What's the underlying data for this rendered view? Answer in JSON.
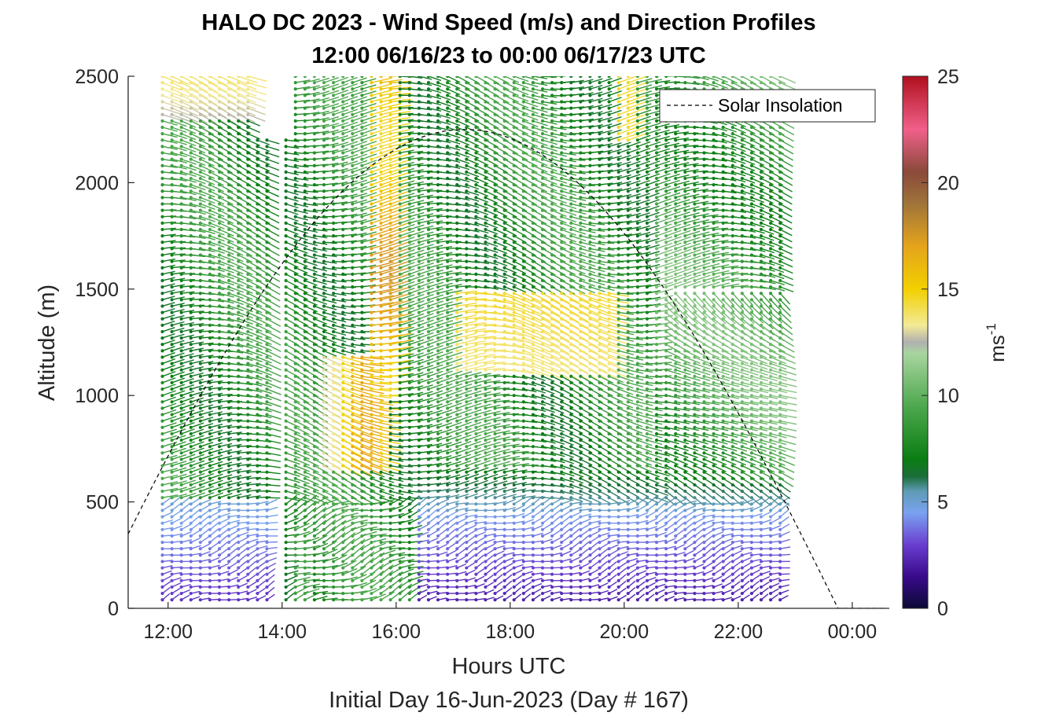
{
  "chart_data": {
    "type": "scatter",
    "title": "HALO DC 2023 - Wind Speed (m/s) and Direction Profiles",
    "subtitle": "12:00 06/16/23 to 00:00 06/17/23  UTC",
    "xlabel": "Hours UTC",
    "xlabel2": "Initial Day 16-Jun-2023 (Day # 167)",
    "ylabel": "Altitude (m)",
    "xlim_hours": [
      11.3,
      24.65
    ],
    "ylim": [
      0,
      2500
    ],
    "x_ticks": [
      {
        "value": 12,
        "label": "12:00"
      },
      {
        "value": 14,
        "label": "14:00"
      },
      {
        "value": 16,
        "label": "16:00"
      },
      {
        "value": 18,
        "label": "18:00"
      },
      {
        "value": 20,
        "label": "20:00"
      },
      {
        "value": 22,
        "label": "22:00"
      },
      {
        "value": 24,
        "label": "00:00"
      }
    ],
    "y_ticks": [
      0,
      500,
      1000,
      1500,
      2000,
      2500
    ],
    "colorbar": {
      "label": "ms-1",
      "label_main": "ms",
      "label_sup": "-1",
      "range": [
        0,
        25
      ],
      "ticks": [
        0,
        5,
        10,
        15,
        20,
        25
      ],
      "stops": [
        {
          "v": 0,
          "c": "#0b0a36"
        },
        {
          "v": 1.5,
          "c": "#3a0a8c"
        },
        {
          "v": 3,
          "c": "#6a3fd0"
        },
        {
          "v": 4.5,
          "c": "#7aa2f0"
        },
        {
          "v": 5.5,
          "c": "#5e9bb5"
        },
        {
          "v": 6.2,
          "c": "#1a6e3a"
        },
        {
          "v": 7,
          "c": "#0a7d12"
        },
        {
          "v": 9.5,
          "c": "#4ea84e"
        },
        {
          "v": 12,
          "c": "#a9d5a0"
        },
        {
          "v": 12.5,
          "c": "#b0b0b0"
        },
        {
          "v": 13.3,
          "c": "#f3ea96"
        },
        {
          "v": 15,
          "c": "#f2d000"
        },
        {
          "v": 17,
          "c": "#e5a41c"
        },
        {
          "v": 19,
          "c": "#a0743a"
        },
        {
          "v": 20.5,
          "c": "#8a4a3a"
        },
        {
          "v": 22.5,
          "c": "#f0608a"
        },
        {
          "v": 25,
          "c": "#b0101e"
        }
      ]
    },
    "legend": {
      "entries": [
        "Solar Insolation"
      ],
      "placement": "top-right"
    },
    "solar_insolation": {
      "style": "dashed",
      "color": "#000000",
      "peak_hour": 17.2,
      "peak_altitude": 2250,
      "start_hour": 11.3,
      "end_hour": 24.4
    },
    "profiles": {
      "time_start": 11.9,
      "time_end": 22.85,
      "time_step": 0.1667,
      "gap_start": 13.85,
      "gap_end": 14.05,
      "levels_start": 40,
      "levels_end": 2500,
      "levels_step": 30
    },
    "wind_speed_regions": [
      {
        "hours": [
          11.9,
          13.8
        ],
        "altitude_m": [
          0,
          550
        ],
        "speed": "2-5",
        "direction": "southwesterly"
      },
      {
        "hours": [
          11.9,
          13.8
        ],
        "altitude_m": [
          550,
          2300
        ],
        "speed": "7-10",
        "direction": "westerly"
      },
      {
        "hours": [
          11.9,
          13.5
        ],
        "altitude_m": [
          2300,
          2500
        ],
        "speed": "11-14"
      },
      {
        "hours": [
          14.6,
          15.9
        ],
        "altitude_m": [
          650,
          1200
        ],
        "speed": "14-18",
        "direction": "westerly"
      },
      {
        "hours": [
          15.5,
          16.0
        ],
        "altitude_m": [
          1000,
          2500
        ],
        "speed": "14-18"
      },
      {
        "hours": [
          16.3,
          22.8
        ],
        "altitude_m": [
          0,
          450
        ],
        "speed": "2-4"
      },
      {
        "hours": [
          17.0,
          19.8
        ],
        "altitude_m": [
          1100,
          1500
        ],
        "speed": "13-15"
      },
      {
        "hours": [
          19.8,
          20.2
        ],
        "altitude_m": [
          2200,
          2500
        ],
        "speed": "14-15"
      }
    ]
  }
}
